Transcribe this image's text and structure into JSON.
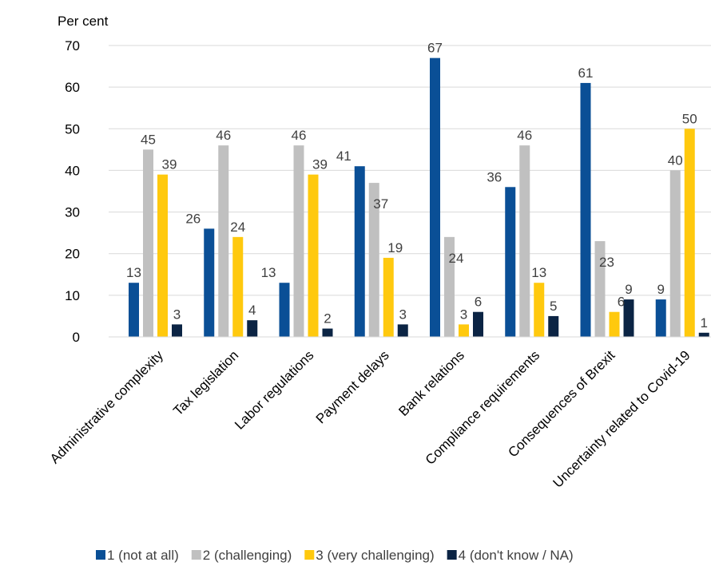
{
  "chart_data": {
    "type": "bar",
    "ylabel": "Per cent",
    "ylim": [
      0,
      70
    ],
    "yticks": [
      0,
      10,
      20,
      30,
      40,
      50,
      60,
      70
    ],
    "grid": true,
    "legend": "bottom",
    "categories": [
      "Administrative complexity",
      "Tax legislation",
      "Labor regulations",
      "Payment delays",
      "Bank relations",
      "Compliance requirements",
      "Consequences of Brexit",
      "Uncertainty related to Covid-19"
    ],
    "series": [
      {
        "name": "1 (not at all)",
        "color": "#0a4f96",
        "values": [
          13,
          26,
          13,
          41,
          67,
          36,
          61,
          9
        ]
      },
      {
        "name": "2 (challenging)",
        "color": "#c0c0c0",
        "values": [
          45,
          46,
          46,
          37,
          24,
          46,
          23,
          40
        ]
      },
      {
        "name": "3 (very challenging)",
        "color": "#ffc90e",
        "values": [
          39,
          24,
          39,
          19,
          3,
          13,
          6,
          50
        ]
      },
      {
        "name": "4 (don't know / NA)",
        "color": "#0b2444",
        "values": [
          3,
          4,
          2,
          3,
          6,
          5,
          9,
          1
        ]
      }
    ]
  }
}
